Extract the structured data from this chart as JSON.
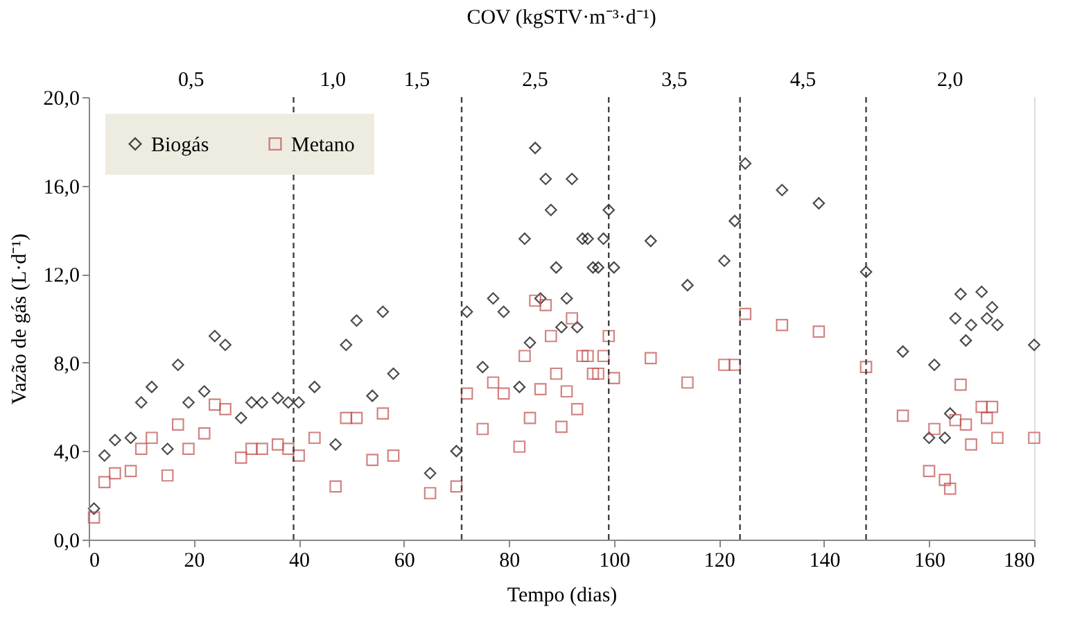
{
  "chart_data": {
    "type": "scatter",
    "title": "COV (kgSTV·m⁻³·d⁻¹)",
    "xlabel": "Tempo (dias)",
    "ylabel": "Vazão de gás (L·d⁻¹)",
    "xlim": [
      0,
      180
    ],
    "xticks": [
      0,
      20,
      40,
      60,
      80,
      100,
      120,
      140,
      160,
      180
    ],
    "ylim": [
      0,
      20
    ],
    "yticks": [
      {
        "value": 0,
        "label": "0,0"
      },
      {
        "value": 4,
        "label": "4,0"
      },
      {
        "value": 8,
        "label": "8,0"
      },
      {
        "value": 12,
        "label": "12,0"
      },
      {
        "value": 16,
        "label": "16,0"
      },
      {
        "value": 20,
        "label": "20,0"
      }
    ],
    "bands": [
      {
        "axis": "x",
        "from": 0,
        "to": 39,
        "label": "0,5",
        "color": "#ffffff"
      },
      {
        "axis": "x",
        "from": 39,
        "to": 54,
        "label": "1,0",
        "color": "#ffffff"
      },
      {
        "axis": "x",
        "from": 54,
        "to": 71,
        "label": "1,5",
        "color": "#ffffff"
      },
      {
        "axis": "x",
        "from": 71,
        "to": 99,
        "label": "2,5",
        "color": "#ffffff"
      },
      {
        "axis": "x",
        "from": 99,
        "to": 124,
        "label": "3,5",
        "color": "#ffffff"
      },
      {
        "axis": "x",
        "from": 124,
        "to": 148,
        "label": "4,5",
        "color": "#ffffff"
      },
      {
        "axis": "x",
        "from": 148,
        "to": 180,
        "label": "2,0",
        "color": "#ffffff"
      }
    ],
    "legend": "top left",
    "ref_lines": [
      {
        "axis": "x",
        "value": 39,
        "line_style": "dashed",
        "color": "#404040"
      },
      {
        "axis": "x",
        "value": 71,
        "line_style": "dashed",
        "color": "#404040"
      },
      {
        "axis": "x",
        "value": 99,
        "line_style": "dashed",
        "color": "#404040"
      },
      {
        "axis": "x",
        "value": 124,
        "line_style": "dashed",
        "color": "#404040"
      },
      {
        "axis": "x",
        "value": 148,
        "line_style": "dashed",
        "color": "#404040"
      }
    ],
    "series": [
      {
        "name": "Biogás",
        "color": "#000000",
        "marker": "diamond",
        "x": [
          1,
          3,
          5,
          8,
          10,
          12,
          15,
          17,
          19,
          22,
          24,
          26,
          29,
          31,
          33,
          36,
          38,
          40,
          43,
          47,
          49,
          51,
          54,
          56,
          58,
          65,
          70,
          72,
          75,
          77,
          79,
          82,
          83,
          84,
          85,
          86,
          87,
          88,
          89,
          90,
          91,
          92,
          93,
          94,
          95,
          96,
          97,
          98,
          99,
          100,
          107,
          114,
          121,
          123,
          125,
          132,
          139,
          148,
          155,
          160,
          161,
          163,
          164,
          165,
          166,
          167,
          168,
          170,
          171,
          172,
          173,
          180
        ],
        "values": [
          1.4,
          3.8,
          4.5,
          4.6,
          6.2,
          6.9,
          4.1,
          7.9,
          6.2,
          6.7,
          9.2,
          8.8,
          5.5,
          6.2,
          6.2,
          6.4,
          6.2,
          6.2,
          6.9,
          4.3,
          8.8,
          9.9,
          6.5,
          10.3,
          7.5,
          3.0,
          4.0,
          10.3,
          7.8,
          10.9,
          10.3,
          6.9,
          13.6,
          8.9,
          17.7,
          10.9,
          16.3,
          14.9,
          12.3,
          9.6,
          10.9,
          16.3,
          9.6,
          13.6,
          13.6,
          12.3,
          12.3,
          13.6,
          14.9,
          12.3,
          13.5,
          11.5,
          12.6,
          14.4,
          17.0,
          15.8,
          15.2,
          12.1,
          8.5,
          4.6,
          7.9,
          4.6,
          5.7,
          10.0,
          11.1,
          9.0,
          9.7,
          11.2,
          10.0,
          10.5,
          9.7,
          8.8
        ]
      },
      {
        "name": "Metano",
        "color": "#c0504d",
        "marker": "square",
        "x": [
          1,
          3,
          5,
          8,
          10,
          12,
          15,
          17,
          19,
          22,
          24,
          26,
          29,
          31,
          33,
          36,
          38,
          40,
          43,
          47,
          49,
          51,
          54,
          56,
          58,
          65,
          70,
          72,
          75,
          77,
          79,
          82,
          83,
          84,
          85,
          86,
          87,
          88,
          89,
          90,
          91,
          92,
          93,
          94,
          95,
          96,
          97,
          98,
          99,
          100,
          107,
          114,
          121,
          123,
          125,
          132,
          139,
          148,
          155,
          160,
          161,
          163,
          164,
          165,
          166,
          167,
          168,
          170,
          171,
          172,
          173,
          180
        ],
        "values": [
          1.0,
          2.6,
          3.0,
          3.1,
          4.1,
          4.6,
          2.9,
          5.2,
          4.1,
          4.8,
          6.1,
          5.9,
          3.7,
          4.1,
          4.1,
          4.3,
          4.1,
          3.8,
          4.6,
          2.4,
          5.5,
          5.5,
          3.6,
          5.7,
          3.8,
          2.1,
          2.4,
          6.6,
          5.0,
          7.1,
          6.6,
          4.2,
          8.3,
          5.5,
          10.8,
          6.8,
          10.6,
          9.2,
          7.5,
          5.1,
          6.7,
          10.0,
          5.9,
          8.3,
          8.3,
          7.5,
          7.5,
          8.3,
          9.2,
          7.3,
          8.2,
          7.1,
          7.9,
          7.9,
          10.2,
          9.7,
          9.4,
          7.8,
          5.6,
          3.1,
          5.0,
          2.7,
          2.3,
          5.4,
          7.0,
          5.2,
          4.3,
          6.0,
          5.5,
          6.0,
          4.6,
          4.6
        ]
      }
    ]
  }
}
